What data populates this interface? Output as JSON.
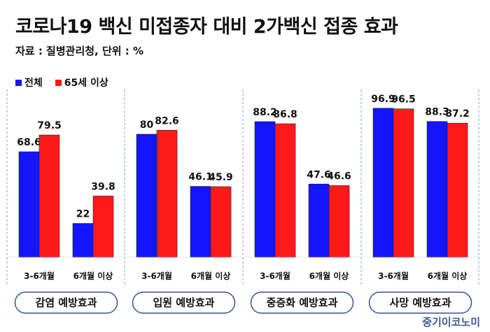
{
  "title": "코로나19 백신 미접종자 대비 2가백신 접종 효과",
  "source": "자료 : 질병관리청, 단위 : %",
  "brand": "중기이코노미",
  "colors": {
    "all": "#1414ff",
    "senior": "#ff1a1a"
  },
  "chart_data": {
    "type": "bar",
    "groups": [
      "감염 예방효과",
      "입원 예방효과",
      "중증화 예방효과",
      "사망 예방효과"
    ],
    "categories": [
      "3-6개월",
      "6개월 이상"
    ],
    "series": [
      {
        "name": "전체",
        "values": [
          [
            68.6,
            22
          ],
          [
            80,
            46.1
          ],
          [
            88.2,
            47.6
          ],
          [
            96.9,
            88.3
          ]
        ]
      },
      {
        "name": "65세 이상",
        "values": [
          [
            79.5,
            39.8
          ],
          [
            82.6,
            45.9
          ],
          [
            86.8,
            46.6
          ],
          [
            96.5,
            87.2
          ]
        ]
      }
    ],
    "ylim": [
      0,
      100
    ],
    "legend_position": "top-left",
    "grid": false
  }
}
